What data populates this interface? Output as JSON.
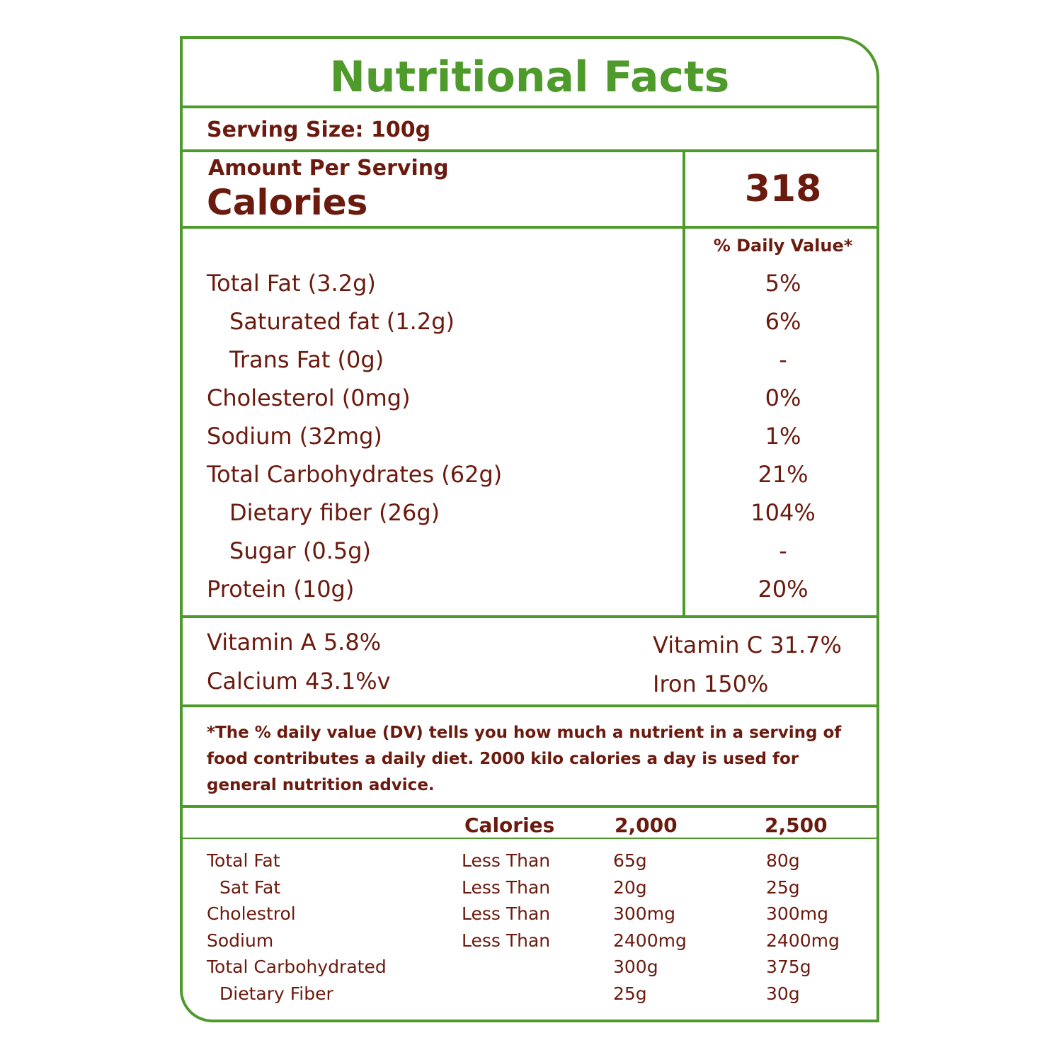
{
  "title": "Nutritional Facts",
  "serving_size": "Serving Size: 100g",
  "amount_per_serving": "Amount Per Serving",
  "calories_label": "Calories",
  "calories_value": "318",
  "daily_value_header": "% Daily Value*",
  "nutrients": [
    {
      "name": "Total Fat (3.2g)",
      "dv": "5%"
    },
    {
      "name": "Saturated fat (1.2g)",
      "dv": "6%"
    },
    {
      "name": "Trans Fat (0g)",
      "dv": "-"
    },
    {
      "name": "Cholesterol (0mg)",
      "dv": "0%"
    },
    {
      "name": "Sodium (32mg)",
      "dv": "1%"
    },
    {
      "name": "Total Carbohydrates  (62g)",
      "dv": "21%"
    },
    {
      "name": "Dietary fiber (26g)",
      "dv": "104%"
    },
    {
      "name": "Sugar (0.5g)",
      "dv": "-"
    },
    {
      "name": "Protein (10g)",
      "dv": "20%"
    }
  ],
  "vitamins": {
    "vitamin_a": "Vitamin A 5.8%",
    "vitamin_c": "Vitamin C 31.7%",
    "calcium": "Calcium 43.1%v",
    "iron": "Iron 150%"
  },
  "footnote": "*The % daily value (DV) tells you how much a nutrient in a serving of food contributes a daily diet. 2000 kilo calories a day is used for general nutrition advice.",
  "reference": {
    "headers": [
      "Calories",
      "2,000",
      "2,500"
    ],
    "rows": [
      {
        "name": "Total Fat",
        "limit": "Less Than",
        "v2000": "65g",
        "v2500": "80g"
      },
      {
        "name": "Sat Fat",
        "limit": "Less Than",
        "v2000": "20g",
        "v2500": "25g"
      },
      {
        "name": "Cholestrol",
        "limit": "Less Than",
        "v2000": "300mg",
        "v2500": "300mg"
      },
      {
        "name": "Sodium",
        "limit": "Less Than",
        "v2000": "2400mg",
        "v2500": "2400mg"
      },
      {
        "name": "Total Carbohydrated",
        "limit": "",
        "v2000": "300g",
        "v2500": "375g"
      },
      {
        "name": "Dietary Fiber",
        "limit": "",
        "v2000": "25g",
        "v2500": "30g"
      }
    ]
  },
  "colors": {
    "border_green": "#4e9a2a",
    "text_brown": "#6b1a0e"
  }
}
